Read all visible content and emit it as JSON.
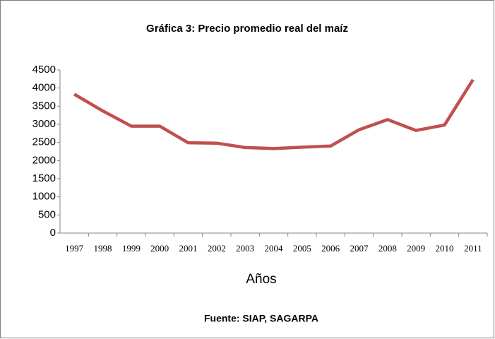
{
  "chart_data": {
    "type": "line",
    "title": "Gráfica 3: Precio promedio real del maíz",
    "x_label": "Años",
    "source": "Fuente: SIAP, SAGARPA",
    "categories": [
      "1997",
      "1998",
      "1999",
      "2000",
      "2001",
      "2002",
      "2003",
      "2004",
      "2005",
      "2006",
      "2007",
      "2008",
      "2009",
      "2010",
      "2011"
    ],
    "series": [
      {
        "name": "Precio promedio real",
        "color": "#c0504d",
        "values": [
          3830,
          3370,
          2950,
          2950,
          2490,
          2480,
          2360,
          2330,
          2370,
          2400,
          2850,
          3130,
          2830,
          2980,
          4230
        ]
      }
    ],
    "ylim": [
      0,
      4500
    ],
    "yticks": [
      0,
      500,
      1000,
      1500,
      2000,
      2500,
      3000,
      3500,
      4000,
      4500
    ],
    "grid": false
  }
}
